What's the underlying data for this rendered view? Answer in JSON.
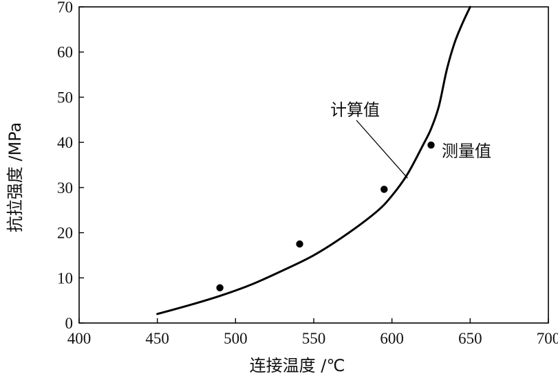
{
  "chart_data": {
    "type": "line",
    "xlabel": "连接温度 /℃",
    "ylabel": "抗拉强度 /MPa",
    "xlim": [
      400,
      700
    ],
    "ylim": [
      0,
      70
    ],
    "xticks": [
      400,
      450,
      500,
      550,
      600,
      650,
      700
    ],
    "yticks": [
      0,
      10,
      20,
      30,
      40,
      50,
      60,
      70
    ],
    "grid": false,
    "series": [
      {
        "name": "计算值",
        "style": "line",
        "color": "#000000",
        "x": [
          450,
          470,
          490,
          510,
          530,
          550,
          570,
          590,
          600,
          610,
          620,
          625,
          630,
          635,
          640,
          645,
          650
        ],
        "y": [
          2.0,
          3.9,
          6.0,
          8.5,
          11.6,
          15.0,
          19.4,
          24.6,
          28.2,
          33.0,
          39.5,
          43.0,
          48.0,
          56.0,
          62.0,
          66.3,
          70.0
        ]
      },
      {
        "name": "测量值",
        "style": "scatter",
        "color": "#000000",
        "x": [
          490,
          541,
          595,
          625
        ],
        "y": [
          7.8,
          17.5,
          29.6,
          39.4
        ]
      }
    ],
    "annotations": [
      {
        "text": "计算值",
        "target": "line"
      },
      {
        "text": "测量值",
        "target": "scatter"
      }
    ]
  }
}
